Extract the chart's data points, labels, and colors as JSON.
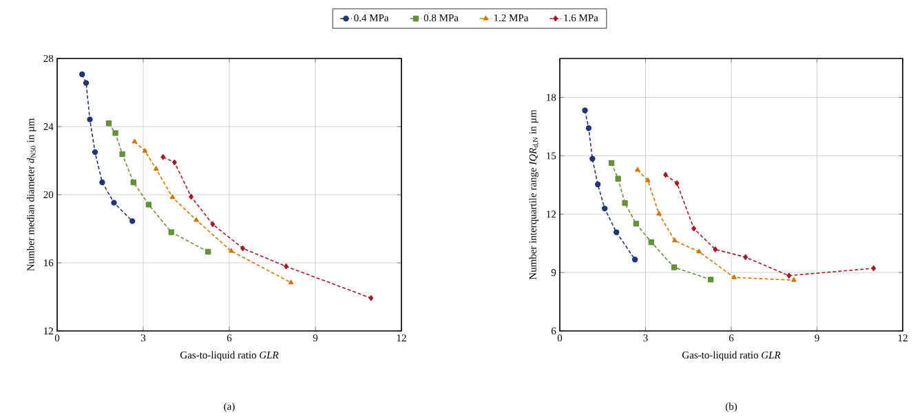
{
  "chart_data": [
    {
      "type": "line",
      "xlabel": "Gas-to-liquid ratio *GLR*",
      "ylabel": "Number median diameter *d*$_{N50}$ in µm",
      "xlim": [
        0,
        12
      ],
      "ylim": [
        12,
        28
      ],
      "xticks": [
        0,
        3,
        6,
        9,
        12
      ],
      "yticks": [
        12,
        16,
        20,
        24,
        28
      ],
      "grid": true,
      "legend": "top",
      "line_style": "dashed",
      "annotations": [
        "(a)"
      ],
      "series": [
        {
          "name": "0.4 MPa",
          "color": "#233472",
          "marker": "circle",
          "x": [
            0.87,
            1.01,
            1.14,
            1.32,
            1.57,
            1.98,
            2.62
          ],
          "values": [
            27.07,
            26.56,
            24.42,
            22.5,
            20.73,
            19.53,
            18.45
          ]
        },
        {
          "name": "0.8 MPa",
          "color": "#66913a",
          "marker": "square",
          "x": [
            1.8,
            2.03,
            2.27,
            2.66,
            3.19,
            3.98,
            5.26
          ],
          "values": [
            24.19,
            23.62,
            22.38,
            20.73,
            19.42,
            17.8,
            16.65
          ]
        },
        {
          "name": "1.2 MPa",
          "color": "#cc7a06",
          "marker": "triangle",
          "x": [
            2.7,
            3.06,
            3.45,
            4.02,
            4.85,
            6.07,
            8.15
          ],
          "values": [
            23.11,
            22.57,
            21.51,
            19.85,
            18.51,
            16.69,
            14.84
          ]
        },
        {
          "name": "1.6 MPa",
          "color": "#a11c28",
          "marker": "diamond",
          "x": [
            3.69,
            4.09,
            4.67,
            5.42,
            6.47,
            7.98,
            10.94
          ],
          "values": [
            22.21,
            21.9,
            19.88,
            18.27,
            16.85,
            15.79,
            13.93
          ]
        }
      ]
    },
    {
      "type": "line",
      "xlabel": "Gas-to-liquid ratio *GLR*",
      "ylabel": "Number interquartile range *IQR*$_{d,N}$ in µm",
      "xlim": [
        0,
        12
      ],
      "ylim": [
        6,
        20
      ],
      "xticks": [
        0,
        3,
        6,
        9,
        12
      ],
      "yticks": [
        6,
        9,
        12,
        15,
        18
      ],
      "grid": true,
      "line_style": "dashed",
      "annotations": [
        "(b)"
      ],
      "series": [
        {
          "color": "#233472",
          "marker": "circle",
          "x": [
            0.88,
            1.01,
            1.14,
            1.33,
            1.57,
            1.98,
            2.63
          ],
          "values": [
            17.33,
            16.42,
            14.85,
            13.53,
            12.29,
            11.07,
            9.67
          ]
        },
        {
          "color": "#66913a",
          "marker": "square",
          "x": [
            1.81,
            2.04,
            2.28,
            2.67,
            3.2,
            4.0,
            5.28
          ],
          "values": [
            14.63,
            13.82,
            12.57,
            11.51,
            10.56,
            9.27,
            8.64
          ]
        },
        {
          "color": "#cc7a06",
          "marker": "triangle",
          "x": [
            2.72,
            3.08,
            3.47,
            4.02,
            4.87,
            6.1,
            8.19
          ],
          "values": [
            14.27,
            13.73,
            12.02,
            10.64,
            10.07,
            8.75,
            8.61
          ]
        },
        {
          "color": "#a11c28",
          "marker": "diamond",
          "x": [
            3.7,
            4.1,
            4.69,
            5.44,
            6.5,
            8.02,
            10.98
          ],
          "values": [
            14.02,
            13.59,
            11.26,
            10.19,
            9.79,
            8.84,
            9.22
          ]
        }
      ]
    }
  ]
}
